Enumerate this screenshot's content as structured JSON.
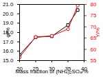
{
  "chart_data": {
    "type": "line",
    "xlabel": "Mass fraction of (NH₄)₂SO₄/%",
    "ylabel": "φ/%",
    "y2label": "Y/%",
    "x": [
      20,
      25,
      30,
      35,
      38
    ],
    "xlim": [
      20,
      40
    ],
    "xticks": [
      20,
      25,
      30,
      35,
      40
    ],
    "ylim": [
      15,
      21
    ],
    "yticks": [
      15,
      16,
      17,
      18,
      19,
      20,
      21
    ],
    "y2lim": [
      55,
      80
    ],
    "y2ticks": [
      55,
      60,
      65,
      70,
      75,
      80
    ],
    "series": [
      {
        "name": "φ",
        "color": "#000000",
        "marker": "square",
        "values": [
          15.6,
          17.5,
          17.6,
          18.8,
          20.4
        ]
      },
      {
        "name": "Y",
        "color": "#ff0000",
        "marker": "circle",
        "axis": "y2",
        "values": [
          56.5,
          65.5,
          66,
          69,
          79.5
        ]
      }
    ]
  }
}
